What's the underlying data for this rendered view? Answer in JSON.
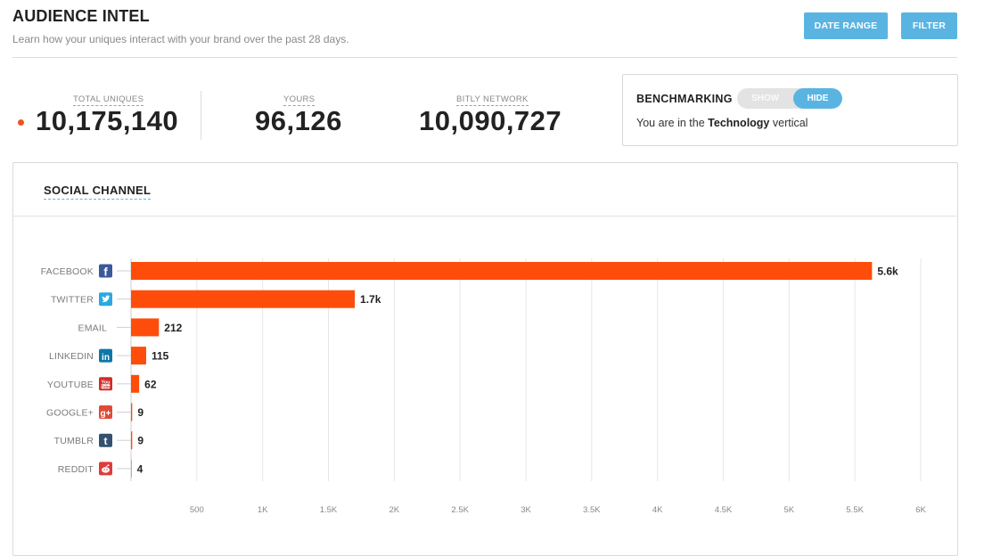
{
  "header": {
    "title": "AUDIENCE INTEL",
    "subtitle": "Learn how your uniques interact with your brand over the past 28 days.",
    "date_range_label": "DATE RANGE",
    "filter_label": "FILTER"
  },
  "stats": {
    "total": {
      "label": "TOTAL UNIQUES",
      "value": "10,175,140"
    },
    "yours": {
      "label": "YOURS",
      "value": "96,126"
    },
    "network": {
      "label": "BITLY NETWORK",
      "value": "10,090,727"
    }
  },
  "benchmarking": {
    "title": "BENCHMARKING",
    "show_label": "SHOW",
    "hide_label": "HIDE",
    "active": "HIDE",
    "text_prefix": "You are in the ",
    "vertical": "Technology",
    "text_suffix": " vertical"
  },
  "social": {
    "title": "SOCIAL CHANNEL"
  },
  "colors": {
    "accent": "#5ab4e2",
    "bar": "#fe4d0a",
    "dot": "#f0521c"
  },
  "chart_data": {
    "type": "bar",
    "orientation": "horizontal",
    "categories": [
      "FACEBOOK",
      "TWITTER",
      "EMAIL",
      "LINKEDIN",
      "YOUTUBE",
      "GOOGLE+",
      "TUMBLR",
      "REDDIT"
    ],
    "icons": [
      "facebook-icon",
      "twitter-icon",
      "email",
      "linkedin-icon",
      "youtube-icon",
      "google-plus-icon",
      "tumblr-icon",
      "reddit-icon"
    ],
    "icon_colors": [
      "#3b5998",
      "#2aa9e0",
      "",
      "#0e76a8",
      "#d42a2a",
      "#dd4b39",
      "#34526f",
      "#e03a3a"
    ],
    "values": [
      5630,
      1700,
      212,
      115,
      62,
      9,
      9,
      4
    ],
    "value_labels": [
      "5.6k",
      "1.7k",
      "212",
      "115",
      "62",
      "9",
      "9",
      "4"
    ],
    "xticks": [
      500,
      1000,
      1500,
      2000,
      2500,
      3000,
      3500,
      4000,
      4500,
      5000,
      5500,
      6000
    ],
    "xtick_labels": [
      "500",
      "1K",
      "1.5K",
      "2K",
      "2.5K",
      "3K",
      "3.5K",
      "4K",
      "4.5K",
      "5K",
      "5.5K",
      "6K"
    ],
    "xlim": [
      0,
      6000
    ],
    "grid": true
  }
}
